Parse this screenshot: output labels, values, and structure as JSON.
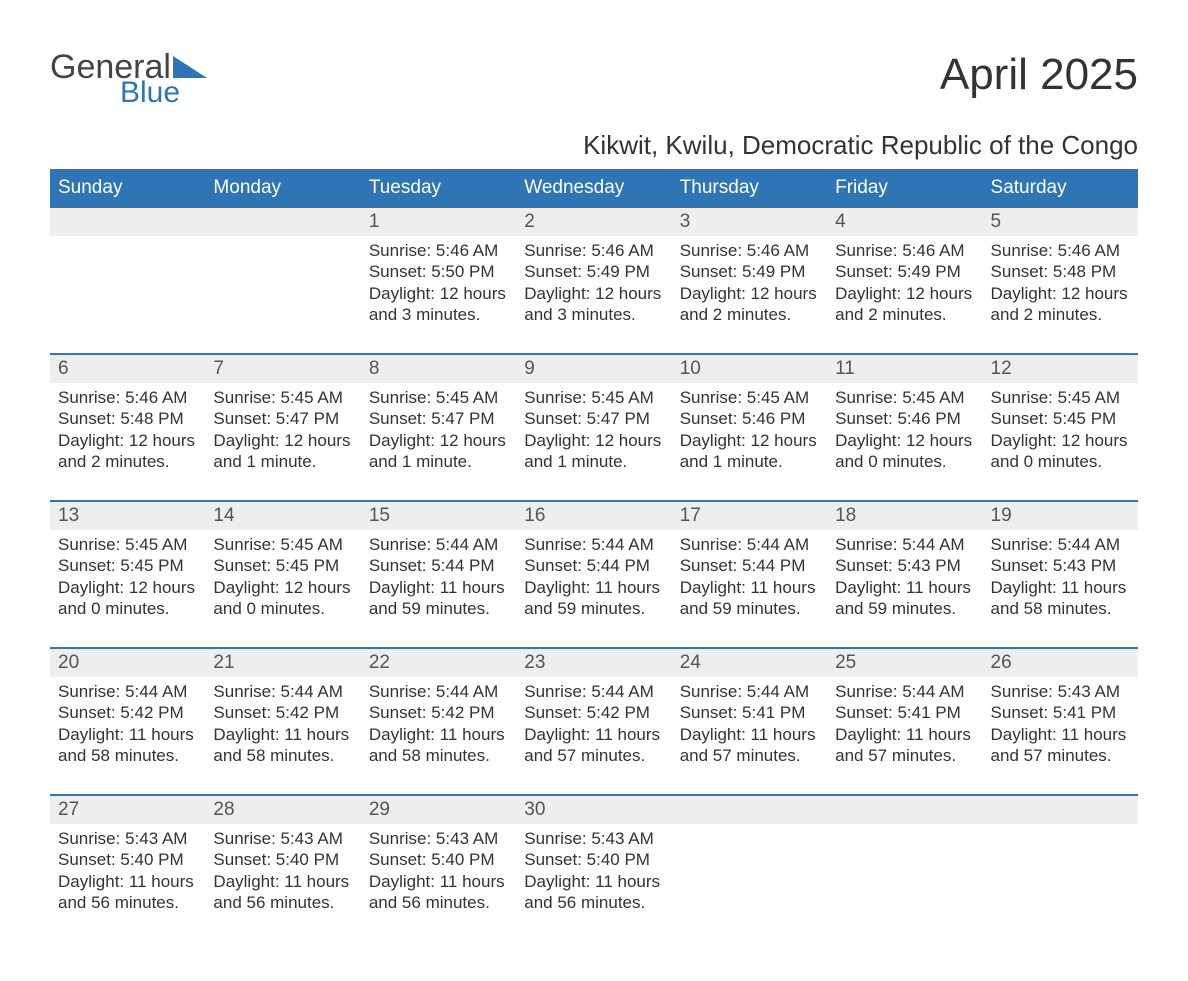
{
  "brand": {
    "name1": "General",
    "name2": "Blue",
    "accent_color": "#2f74b5"
  },
  "title": "April 2025",
  "subtitle": "Kikwit, Kwilu, Democratic Republic of the Congo",
  "colors": {
    "header_bg": "#2f74b5",
    "header_text": "#ffffff",
    "stripe_bg": "#eeeeee",
    "body_text": "#333333",
    "page_bg": "#ffffff"
  },
  "fonts": {
    "title_size": 44,
    "subtitle_size": 26,
    "header_size": 19,
    "body_size": 17
  },
  "day_headers": [
    "Sunday",
    "Monday",
    "Tuesday",
    "Wednesday",
    "Thursday",
    "Friday",
    "Saturday"
  ],
  "weeks": [
    [
      {
        "blank": true
      },
      {
        "blank": true
      },
      {
        "n": "1",
        "sunrise": "Sunrise: 5:46 AM",
        "sunset": "Sunset: 5:50 PM",
        "d1": "Daylight: 12 hours",
        "d2": "and 3 minutes."
      },
      {
        "n": "2",
        "sunrise": "Sunrise: 5:46 AM",
        "sunset": "Sunset: 5:49 PM",
        "d1": "Daylight: 12 hours",
        "d2": "and 3 minutes."
      },
      {
        "n": "3",
        "sunrise": "Sunrise: 5:46 AM",
        "sunset": "Sunset: 5:49 PM",
        "d1": "Daylight: 12 hours",
        "d2": "and 2 minutes."
      },
      {
        "n": "4",
        "sunrise": "Sunrise: 5:46 AM",
        "sunset": "Sunset: 5:49 PM",
        "d1": "Daylight: 12 hours",
        "d2": "and 2 minutes."
      },
      {
        "n": "5",
        "sunrise": "Sunrise: 5:46 AM",
        "sunset": "Sunset: 5:48 PM",
        "d1": "Daylight: 12 hours",
        "d2": "and 2 minutes."
      }
    ],
    [
      {
        "n": "6",
        "sunrise": "Sunrise: 5:46 AM",
        "sunset": "Sunset: 5:48 PM",
        "d1": "Daylight: 12 hours",
        "d2": "and 2 minutes."
      },
      {
        "n": "7",
        "sunrise": "Sunrise: 5:45 AM",
        "sunset": "Sunset: 5:47 PM",
        "d1": "Daylight: 12 hours",
        "d2": "and 1 minute."
      },
      {
        "n": "8",
        "sunrise": "Sunrise: 5:45 AM",
        "sunset": "Sunset: 5:47 PM",
        "d1": "Daylight: 12 hours",
        "d2": "and 1 minute."
      },
      {
        "n": "9",
        "sunrise": "Sunrise: 5:45 AM",
        "sunset": "Sunset: 5:47 PM",
        "d1": "Daylight: 12 hours",
        "d2": "and 1 minute."
      },
      {
        "n": "10",
        "sunrise": "Sunrise: 5:45 AM",
        "sunset": "Sunset: 5:46 PM",
        "d1": "Daylight: 12 hours",
        "d2": "and 1 minute."
      },
      {
        "n": "11",
        "sunrise": "Sunrise: 5:45 AM",
        "sunset": "Sunset: 5:46 PM",
        "d1": "Daylight: 12 hours",
        "d2": "and 0 minutes."
      },
      {
        "n": "12",
        "sunrise": "Sunrise: 5:45 AM",
        "sunset": "Sunset: 5:45 PM",
        "d1": "Daylight: 12 hours",
        "d2": "and 0 minutes."
      }
    ],
    [
      {
        "n": "13",
        "sunrise": "Sunrise: 5:45 AM",
        "sunset": "Sunset: 5:45 PM",
        "d1": "Daylight: 12 hours",
        "d2": "and 0 minutes."
      },
      {
        "n": "14",
        "sunrise": "Sunrise: 5:45 AM",
        "sunset": "Sunset: 5:45 PM",
        "d1": "Daylight: 12 hours",
        "d2": "and 0 minutes."
      },
      {
        "n": "15",
        "sunrise": "Sunrise: 5:44 AM",
        "sunset": "Sunset: 5:44 PM",
        "d1": "Daylight: 11 hours",
        "d2": "and 59 minutes."
      },
      {
        "n": "16",
        "sunrise": "Sunrise: 5:44 AM",
        "sunset": "Sunset: 5:44 PM",
        "d1": "Daylight: 11 hours",
        "d2": "and 59 minutes."
      },
      {
        "n": "17",
        "sunrise": "Sunrise: 5:44 AM",
        "sunset": "Sunset: 5:44 PM",
        "d1": "Daylight: 11 hours",
        "d2": "and 59 minutes."
      },
      {
        "n": "18",
        "sunrise": "Sunrise: 5:44 AM",
        "sunset": "Sunset: 5:43 PM",
        "d1": "Daylight: 11 hours",
        "d2": "and 59 minutes."
      },
      {
        "n": "19",
        "sunrise": "Sunrise: 5:44 AM",
        "sunset": "Sunset: 5:43 PM",
        "d1": "Daylight: 11 hours",
        "d2": "and 58 minutes."
      }
    ],
    [
      {
        "n": "20",
        "sunrise": "Sunrise: 5:44 AM",
        "sunset": "Sunset: 5:42 PM",
        "d1": "Daylight: 11 hours",
        "d2": "and 58 minutes."
      },
      {
        "n": "21",
        "sunrise": "Sunrise: 5:44 AM",
        "sunset": "Sunset: 5:42 PM",
        "d1": "Daylight: 11 hours",
        "d2": "and 58 minutes."
      },
      {
        "n": "22",
        "sunrise": "Sunrise: 5:44 AM",
        "sunset": "Sunset: 5:42 PM",
        "d1": "Daylight: 11 hours",
        "d2": "and 58 minutes."
      },
      {
        "n": "23",
        "sunrise": "Sunrise: 5:44 AM",
        "sunset": "Sunset: 5:42 PM",
        "d1": "Daylight: 11 hours",
        "d2": "and 57 minutes."
      },
      {
        "n": "24",
        "sunrise": "Sunrise: 5:44 AM",
        "sunset": "Sunset: 5:41 PM",
        "d1": "Daylight: 11 hours",
        "d2": "and 57 minutes."
      },
      {
        "n": "25",
        "sunrise": "Sunrise: 5:44 AM",
        "sunset": "Sunset: 5:41 PM",
        "d1": "Daylight: 11 hours",
        "d2": "and 57 minutes."
      },
      {
        "n": "26",
        "sunrise": "Sunrise: 5:43 AM",
        "sunset": "Sunset: 5:41 PM",
        "d1": "Daylight: 11 hours",
        "d2": "and 57 minutes."
      }
    ],
    [
      {
        "n": "27",
        "sunrise": "Sunrise: 5:43 AM",
        "sunset": "Sunset: 5:40 PM",
        "d1": "Daylight: 11 hours",
        "d2": "and 56 minutes."
      },
      {
        "n": "28",
        "sunrise": "Sunrise: 5:43 AM",
        "sunset": "Sunset: 5:40 PM",
        "d1": "Daylight: 11 hours",
        "d2": "and 56 minutes."
      },
      {
        "n": "29",
        "sunrise": "Sunrise: 5:43 AM",
        "sunset": "Sunset: 5:40 PM",
        "d1": "Daylight: 11 hours",
        "d2": "and 56 minutes."
      },
      {
        "n": "30",
        "sunrise": "Sunrise: 5:43 AM",
        "sunset": "Sunset: 5:40 PM",
        "d1": "Daylight: 11 hours",
        "d2": "and 56 minutes."
      },
      {
        "blank": true
      },
      {
        "blank": true
      },
      {
        "blank": true
      }
    ]
  ]
}
